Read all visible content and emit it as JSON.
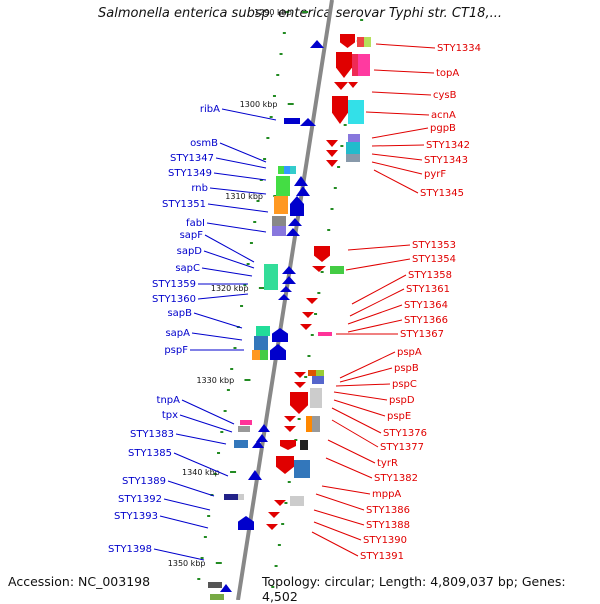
{
  "title": "Salmonella enterica subsp. enterica serovar Typhi str. CT18,...",
  "footer": {
    "accession": "Accession: NC_003198",
    "topology": "Topology: circular; Length: 4,809,037 bp; Genes: 4,502"
  },
  "kbp_ticks": [
    "1290 kbp",
    "1300 kbp",
    "1310 kbp",
    "1320 kbp",
    "1330 kbp",
    "1340 kbp",
    "1350 kbp"
  ],
  "colors": {
    "forward": "#0000cc",
    "reverse": "#e00000",
    "backbone": "#888888",
    "tick": "#228b22"
  },
  "left_labels": [
    "ribA",
    "osmB",
    "STY1347",
    "STY1349",
    "rnb",
    "STY1351",
    "fabI",
    "sapF",
    "sapD",
    "sapC",
    "STY1359",
    "STY1360",
    "sapB",
    "sapA",
    "pspF",
    "tnpA",
    "tpx",
    "STY1383",
    "STY1385",
    "STY1389",
    "STY1392",
    "STY1393",
    "STY1398"
  ],
  "right_labels": [
    "STY1334",
    "topA",
    "cysB",
    "acnA",
    "pgpB",
    "STY1342",
    "STY1343",
    "pyrF",
    "STY1345",
    "STY1353",
    "STY1354",
    "STY1358",
    "STY1361",
    "STY1364",
    "STY1366",
    "STY1367",
    "pspA",
    "pspB",
    "pspC",
    "pspD",
    "pspE",
    "STY1376",
    "STY1377",
    "tyrR",
    "STY1382",
    "mppA",
    "STY1386",
    "STY1388",
    "STY1390",
    "STY1391"
  ]
}
